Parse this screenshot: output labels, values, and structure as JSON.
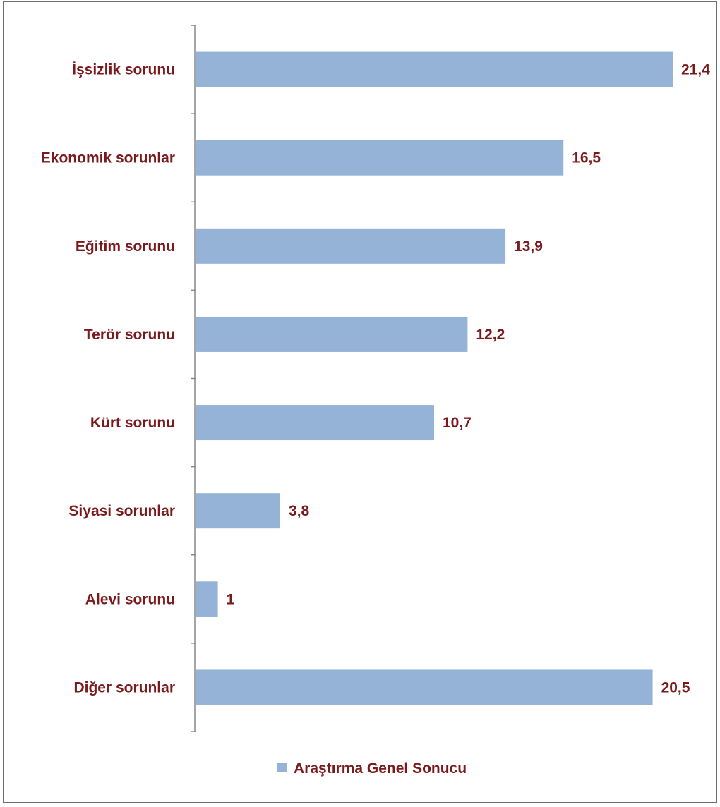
{
  "chart_data": {
    "type": "bar",
    "orientation": "horizontal",
    "categories": [
      "İşsizlik sorunu",
      "Ekonomik sorunlar",
      "Eğitim sorunu",
      "Terör sorunu",
      "Kürt sorunu",
      "Siyasi sorunlar",
      "Alevi sorunu",
      "Diğer sorunlar"
    ],
    "series": [
      {
        "name": "Araştırma Genel Sonucu",
        "values": [
          21.4,
          16.5,
          13.9,
          12.2,
          10.7,
          3.8,
          1,
          20.5
        ],
        "labels": [
          "21,4",
          "16,5",
          "13,9",
          "12,2",
          "10,7",
          "3,8",
          "1",
          "20,5"
        ],
        "color": "#95b3d7"
      }
    ],
    "xlim": [
      0,
      21.4
    ],
    "grid": false,
    "legend_position": "bottom",
    "label_color": "#7b1a1d",
    "axis_color": "#888888"
  }
}
